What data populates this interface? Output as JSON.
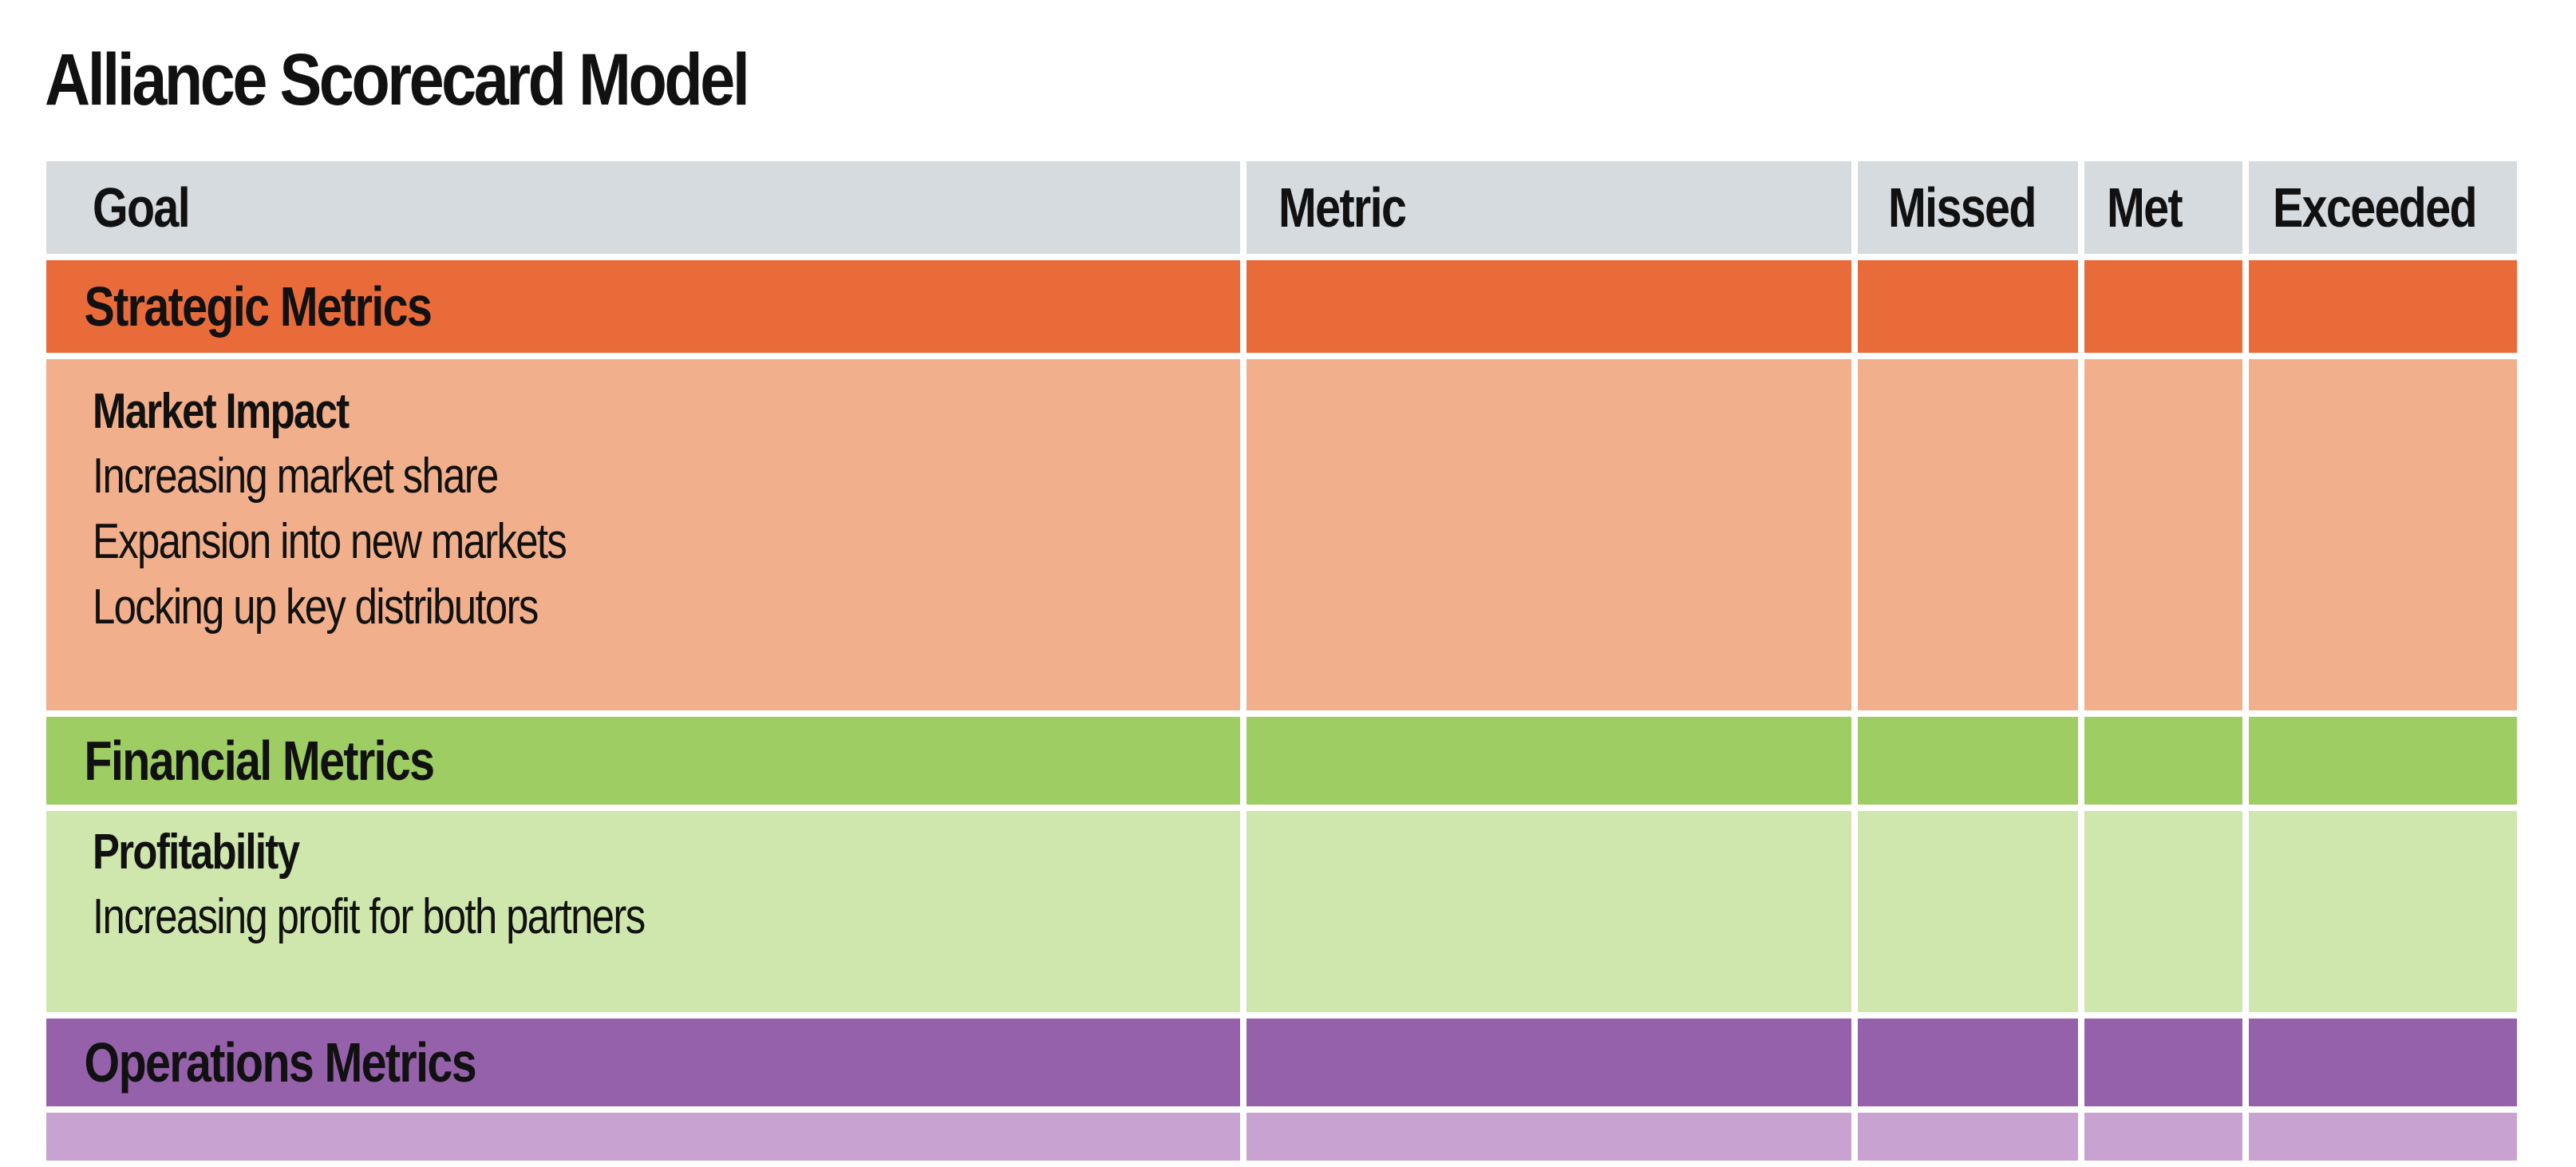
{
  "title": "Alliance Scorecard Model",
  "columns": {
    "goal": "Goal",
    "metric": "Metric",
    "missed": "Missed",
    "met": "Met",
    "exceeded": "Exceeded"
  },
  "sections": [
    {
      "name": "Strategic Metrics",
      "color": "#ea6b3a",
      "detail_color": "#f1b08b",
      "subtitle": "Market Impact",
      "items": [
        "Increasing market share",
        "Expansion into new markets",
        "Locking up key distributors"
      ]
    },
    {
      "name": "Financial Metrics",
      "color": "#9ecd64",
      "detail_color": "#cfe7ad",
      "subtitle": "Profitability",
      "items": [
        "Increasing profit for both partners"
      ]
    },
    {
      "name": "Operations Metrics",
      "color": "#9661ab",
      "detail_color": "#c8a3d2",
      "subtitle": "",
      "items": []
    }
  ],
  "header_color": "#d6dbdf"
}
